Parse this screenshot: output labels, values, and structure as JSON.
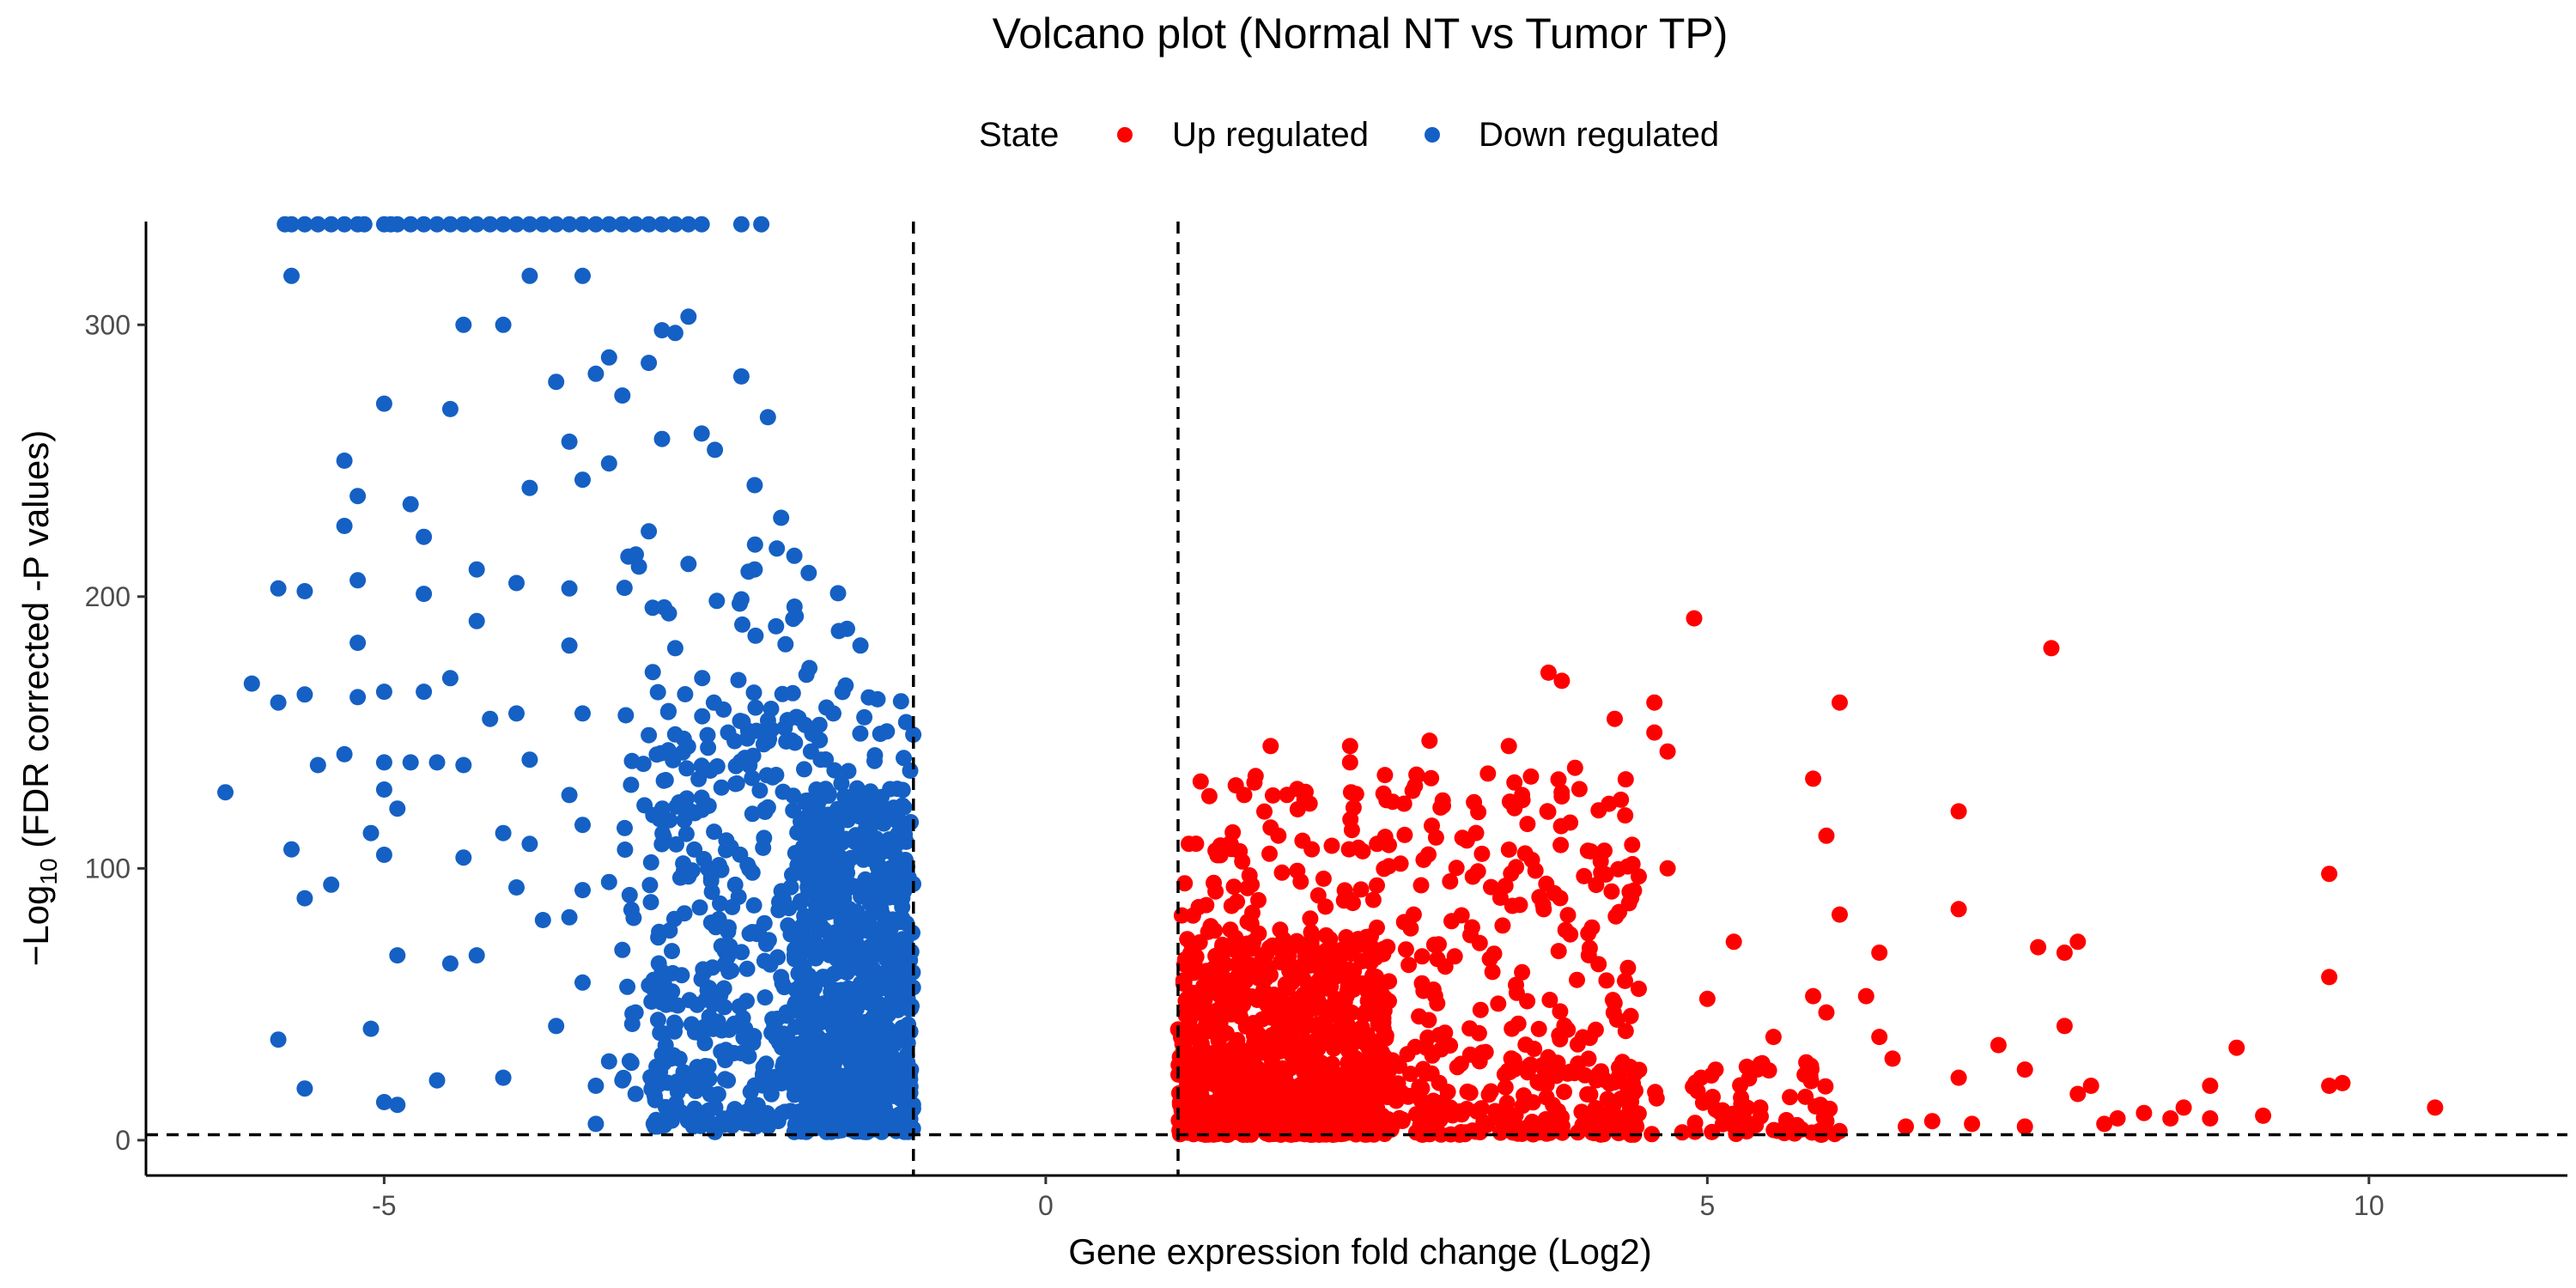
{
  "chart_data": {
    "type": "scatter",
    "title": "Volcano plot (Normal NT vs Tumor TP)",
    "xlabel": "Gene expression fold change (Log2)",
    "ylabel_parts": {
      "prefix": "−Log",
      "sub": "10",
      "suffix": " (FDR corrected -P values)"
    },
    "xlim": [
      -6.8,
      11.5
    ],
    "ylim": [
      -13,
      338
    ],
    "x_ticks": [
      -5,
      0,
      5,
      10
    ],
    "y_ticks": [
      0,
      100,
      200,
      300
    ],
    "grid": false,
    "thresholds": {
      "fold_change": [
        -1,
        1
      ],
      "neg_log10_fdr": 2
    },
    "legend": {
      "title": "State",
      "position": "top",
      "entries": [
        {
          "label": "Up regulated",
          "color": "#ff0000"
        },
        {
          "label": "Down regulated",
          "color": "#1560c4"
        }
      ]
    },
    "series": [
      {
        "name": "Up regulated",
        "color": "#ff0000",
        "points": [
          [
            4.9,
            192
          ],
          [
            7.6,
            181
          ],
          [
            3.8,
            172
          ],
          [
            3.9,
            169
          ],
          [
            6.0,
            161
          ],
          [
            4.6,
            161
          ],
          [
            4.3,
            155
          ],
          [
            4.6,
            150
          ],
          [
            2.9,
            147
          ],
          [
            3.5,
            145
          ],
          [
            4.7,
            143
          ],
          [
            2.3,
            145
          ],
          [
            1.7,
            145
          ],
          [
            2.3,
            139
          ],
          [
            4.0,
            137
          ],
          [
            5.8,
            133
          ],
          [
            3.0,
            125
          ],
          [
            3.6,
            127
          ],
          [
            1.5,
            127
          ],
          [
            1.7,
            115
          ],
          [
            6.9,
            121
          ],
          [
            5.9,
            112
          ],
          [
            4.7,
            100
          ],
          [
            9.7,
            98
          ],
          [
            6.0,
            83
          ],
          [
            6.9,
            85
          ],
          [
            5.2,
            73
          ],
          [
            7.8,
            73
          ],
          [
            7.5,
            71
          ],
          [
            6.3,
            69
          ],
          [
            9.7,
            60
          ],
          [
            7.7,
            69
          ],
          [
            5.0,
            52
          ],
          [
            5.8,
            53
          ],
          [
            6.2,
            53
          ],
          [
            5.9,
            47
          ],
          [
            5.5,
            38
          ],
          [
            5.4,
            28
          ],
          [
            6.3,
            38
          ],
          [
            6.4,
            30
          ],
          [
            7.2,
            35
          ],
          [
            7.4,
            26
          ],
          [
            6.9,
            23
          ],
          [
            9.0,
            34
          ],
          [
            7.7,
            42
          ],
          [
            9.8,
            21
          ],
          [
            9.7,
            20
          ],
          [
            10.5,
            12
          ],
          [
            8.8,
            20
          ],
          [
            8.6,
            12
          ],
          [
            7.8,
            17
          ],
          [
            7.9,
            20
          ],
          [
            8.3,
            10
          ],
          [
            8.1,
            8
          ],
          [
            8.0,
            6
          ],
          [
            9.2,
            9
          ],
          [
            8.8,
            8
          ],
          [
            8.5,
            8
          ],
          [
            6.7,
            7
          ],
          [
            7.0,
            6
          ],
          [
            7.4,
            5
          ],
          [
            6.5,
            5
          ],
          [
            5.9,
            7
          ],
          [
            5.4,
            12
          ],
          [
            5.1,
            10
          ]
        ]
      },
      {
        "name": "Down regulated",
        "color": "#1560c4",
        "points": [
          [
            -5.7,
            318
          ],
          [
            -3.9,
            318
          ],
          [
            -3.5,
            318
          ],
          [
            -2.7,
            303
          ],
          [
            -4.4,
            300
          ],
          [
            -4.1,
            300
          ],
          [
            -2.9,
            298
          ],
          [
            -2.8,
            297
          ],
          [
            -3.3,
            288
          ],
          [
            -3.0,
            286
          ],
          [
            -3.4,
            282
          ],
          [
            -2.3,
            281
          ],
          [
            -3.7,
            279
          ],
          [
            -5.0,
            271
          ],
          [
            -4.5,
            269
          ],
          [
            -3.2,
            274
          ],
          [
            -2.1,
            266
          ],
          [
            -2.6,
            260
          ],
          [
            -2.9,
            258
          ],
          [
            -2.5,
            254
          ],
          [
            -3.6,
            257
          ],
          [
            -5.3,
            250
          ],
          [
            -3.3,
            249
          ],
          [
            -3.5,
            243
          ],
          [
            -3.9,
            240
          ],
          [
            -2.2,
            241
          ],
          [
            -5.2,
            237
          ],
          [
            -4.8,
            234
          ],
          [
            -5.3,
            226
          ],
          [
            -4.7,
            222
          ],
          [
            -2.0,
            229
          ],
          [
            -3.0,
            224
          ],
          [
            -1.9,
            215
          ],
          [
            -4.3,
            210
          ],
          [
            -2.7,
            212
          ],
          [
            -2.2,
            210
          ],
          [
            -4.0,
            205
          ],
          [
            -5.2,
            206
          ],
          [
            -5.8,
            203
          ],
          [
            -5.6,
            202
          ],
          [
            -4.7,
            201
          ],
          [
            -3.6,
            203
          ],
          [
            -2.3,
            199
          ],
          [
            -1.4,
            182
          ],
          [
            -5.2,
            183
          ],
          [
            -4.3,
            191
          ],
          [
            -2.8,
            181
          ],
          [
            -6.0,
            168
          ],
          [
            -3.6,
            182
          ],
          [
            -4.5,
            170
          ],
          [
            -5.0,
            165
          ],
          [
            -5.6,
            164
          ],
          [
            -4.7,
            165
          ],
          [
            -5.8,
            161
          ],
          [
            -5.2,
            163
          ],
          [
            -4.2,
            155
          ],
          [
            -3.5,
            157
          ],
          [
            -4.0,
            157
          ],
          [
            -3.0,
            149
          ],
          [
            -2.4,
            150
          ],
          [
            -5.3,
            142
          ],
          [
            -5.0,
            139
          ],
          [
            -4.8,
            139
          ],
          [
            -4.6,
            139
          ],
          [
            -4.4,
            138
          ],
          [
            -5.5,
            138
          ],
          [
            -3.9,
            140
          ],
          [
            -6.2,
            128
          ],
          [
            -5.0,
            129
          ],
          [
            -4.9,
            122
          ],
          [
            -3.6,
            127
          ],
          [
            -2.6,
            126
          ],
          [
            -5.1,
            113
          ],
          [
            -4.1,
            113
          ],
          [
            -3.5,
            116
          ],
          [
            -5.7,
            107
          ],
          [
            -5.0,
            105
          ],
          [
            -4.4,
            104
          ],
          [
            -3.9,
            109
          ],
          [
            -3.3,
            95
          ],
          [
            -2.7,
            97
          ],
          [
            -5.4,
            94
          ],
          [
            -4.0,
            93
          ],
          [
            -5.6,
            89
          ],
          [
            -3.5,
            92
          ],
          [
            -3.8,
            81
          ],
          [
            -3.6,
            82
          ],
          [
            -4.9,
            68
          ],
          [
            -4.5,
            65
          ],
          [
            -4.3,
            68
          ],
          [
            -3.2,
            70
          ],
          [
            -2.9,
            62
          ],
          [
            -3.5,
            58
          ],
          [
            -3.1,
            47
          ],
          [
            -3.7,
            42
          ],
          [
            -5.1,
            41
          ],
          [
            -2.6,
            39
          ],
          [
            -2.3,
            32
          ],
          [
            -5.8,
            37
          ],
          [
            -3.3,
            29
          ],
          [
            -4.6,
            22
          ],
          [
            -3.2,
            22
          ],
          [
            -3.1,
            17
          ],
          [
            -4.1,
            23
          ],
          [
            -3.4,
            20
          ],
          [
            -5.6,
            19
          ],
          [
            -5.0,
            14
          ],
          [
            -4.9,
            13
          ],
          [
            -3.4,
            6
          ],
          [
            -2.1,
            5
          ],
          [
            -1.9,
            3
          ],
          [
            -2.3,
            10
          ],
          [
            -2.5,
            3
          ],
          [
            -2.0,
            60
          ],
          [
            -1.7,
            100
          ],
          [
            -1.3,
            91
          ],
          [
            -1.5,
            73
          ],
          [
            -1.7,
            140
          ],
          [
            -1.4,
            120
          ]
        ]
      }
    ],
    "dense_clusters": [
      {
        "series": "Up regulated",
        "count": 1400,
        "groups": [
          {
            "x": [
              1.0,
              2.6
            ],
            "y": [
              2,
              75
            ],
            "count": 700
          },
          {
            "x": [
              1.0,
              4.5
            ],
            "y": [
              2,
              135
            ],
            "count": 520
          },
          {
            "x": [
              1.0,
              6.0
            ],
            "y": [
              2,
              30
            ],
            "count": 180
          }
        ]
      },
      {
        "series": "Down regulated",
        "count": 1250,
        "groups": [
          {
            "x": [
              -1.9,
              -1.0
            ],
            "y": [
              3,
              130
            ],
            "count": 620
          },
          {
            "x": [
              -3.0,
              -1.0
            ],
            "y": [
              5,
              165
            ],
            "count": 480
          },
          {
            "x": [
              -3.2,
              -1.3
            ],
            "y": [
              20,
              220
            ],
            "count": 150
          }
        ]
      }
    ],
    "clipped_top_points": {
      "series": "Down regulated",
      "y": 337,
      "x": [
        -5.75,
        -5.7,
        -5.6,
        -5.5,
        -5.4,
        -5.3,
        -5.2,
        -5.15,
        -5.0,
        -4.95,
        -4.9,
        -4.8,
        -4.7,
        -4.6,
        -4.5,
        -4.4,
        -4.3,
        -4.2,
        -4.1,
        -4.0,
        -3.9,
        -3.8,
        -3.7,
        -3.6,
        -3.5,
        -3.4,
        -3.3,
        -3.2,
        -3.1,
        -3.0,
        -2.9,
        -2.8,
        -2.7,
        -2.6,
        -2.3,
        -2.15
      ]
    }
  }
}
